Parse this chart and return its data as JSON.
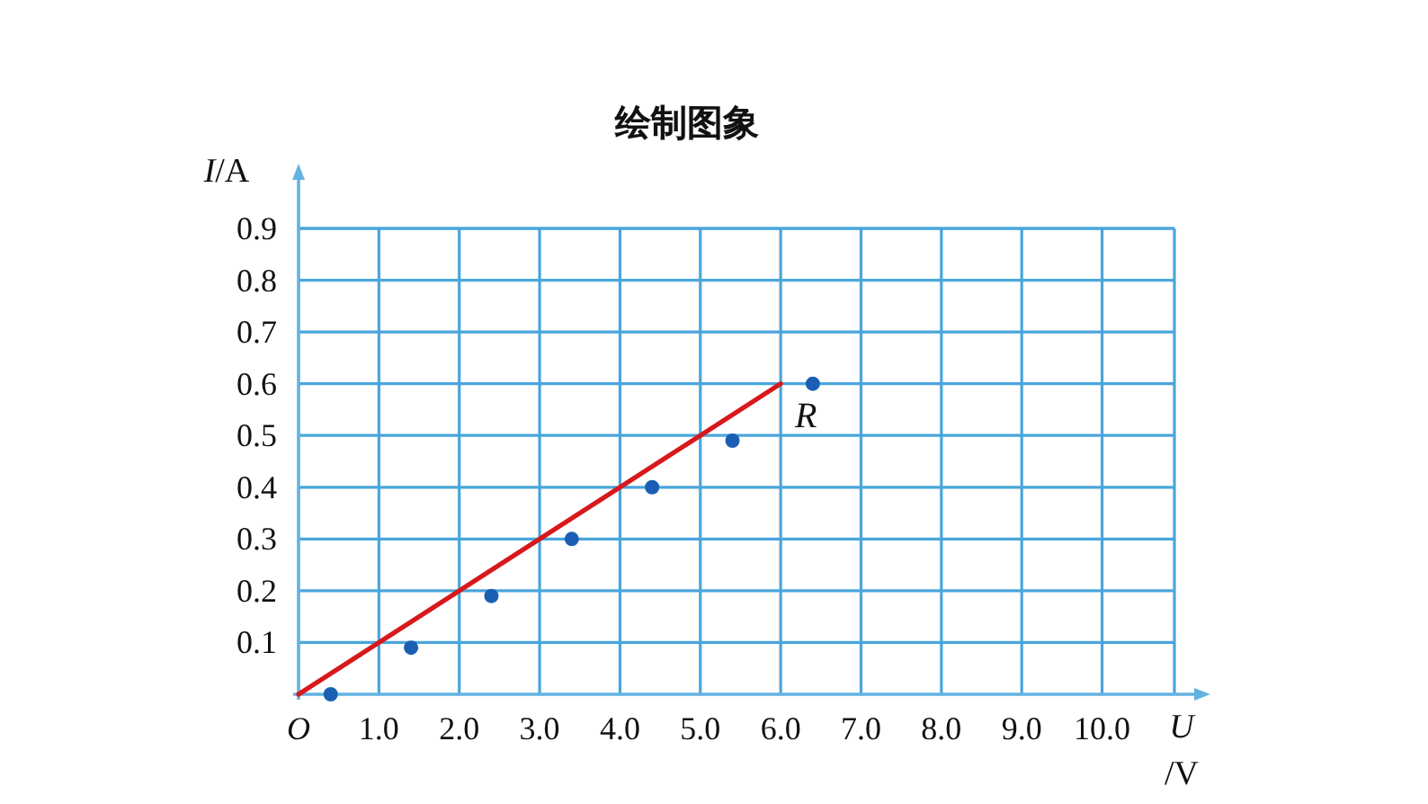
{
  "chart_data": {
    "type": "scatter",
    "title": "绘制图象",
    "xlabel": "U\n/V",
    "ylabel": "I/A",
    "xlim": [
      0,
      10.9
    ],
    "ylim": [
      0,
      0.9
    ],
    "xticks": [
      {
        "value": 0,
        "label": "O"
      },
      {
        "value": 1,
        "label": "1.0"
      },
      {
        "value": 2,
        "label": "2.0"
      },
      {
        "value": 3,
        "label": "3.0"
      },
      {
        "value": 4,
        "label": "4.0"
      },
      {
        "value": 5,
        "label": "5.0"
      },
      {
        "value": 6,
        "label": "6.0"
      },
      {
        "value": 7,
        "label": "7.0"
      },
      {
        "value": 8,
        "label": "8.0"
      },
      {
        "value": 9,
        "label": "9.0"
      },
      {
        "value": 10,
        "label": "10.0"
      }
    ],
    "yticks": [
      0.1,
      0.2,
      0.3,
      0.4,
      0.5,
      0.6,
      0.7,
      0.8,
      0.9
    ],
    "grid": true,
    "series": [
      {
        "color": "#1a5fb4",
        "x": [
          0.4,
          1.4,
          2.4,
          3.4,
          4.4,
          5.4,
          6.4
        ],
        "values": [
          0,
          0.09,
          0.19,
          0.3,
          0.4,
          0.49,
          0.6
        ]
      },
      {
        "type": "line",
        "name": "R",
        "color": "#d7191c",
        "x": [
          0,
          6.0
        ],
        "values": [
          0,
          0.6
        ]
      }
    ]
  }
}
